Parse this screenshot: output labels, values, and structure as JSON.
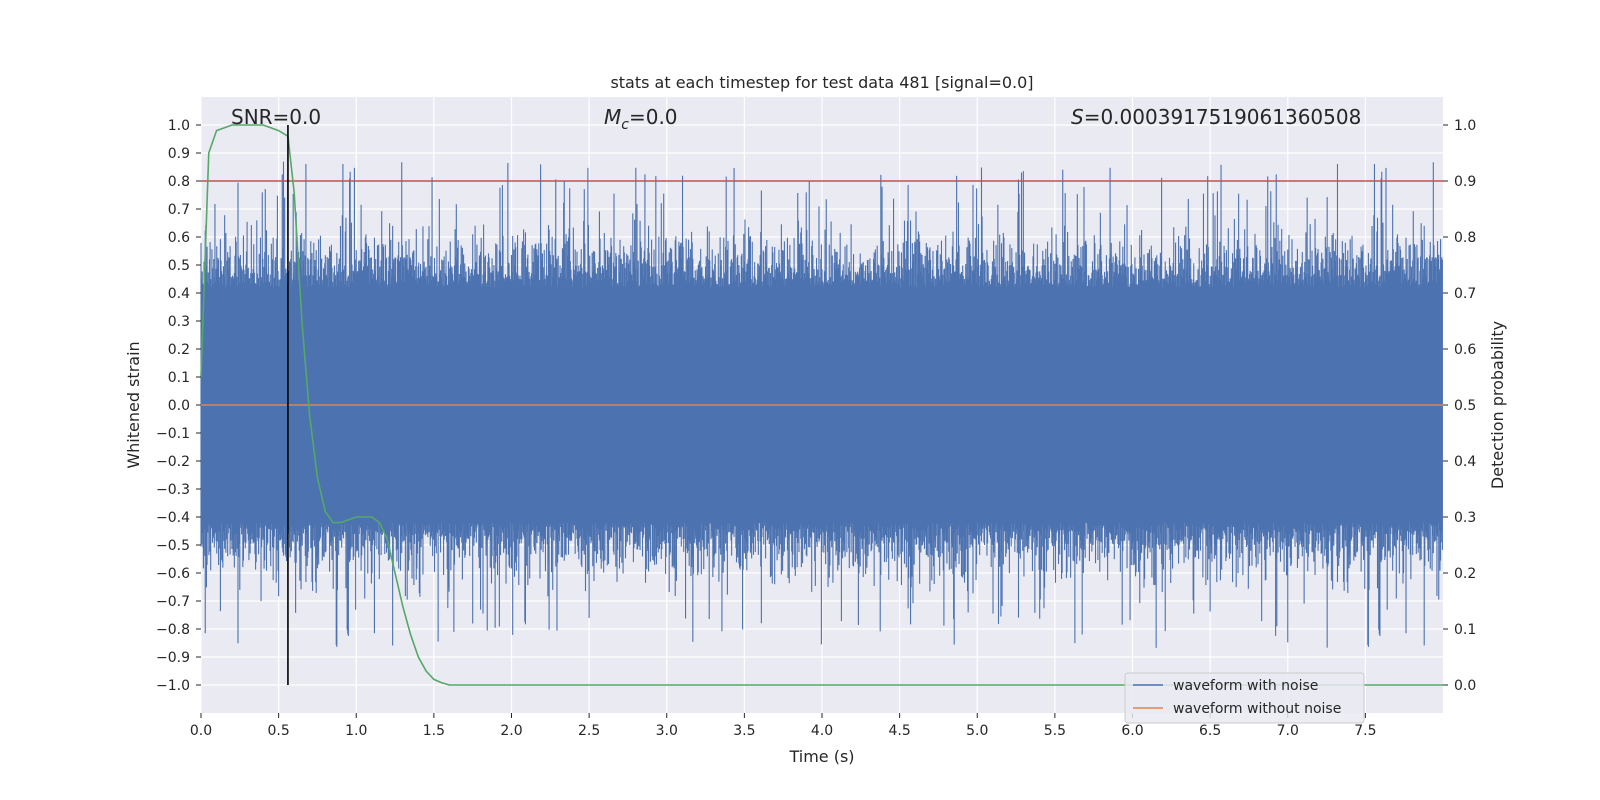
{
  "chart_data": {
    "type": "line",
    "title": "stats at each timestep for test data 481 [signal=0.0]",
    "xlabel": "Time (s)",
    "ylabel": "Whitened strain",
    "y2label": "Detection probability",
    "xlim": [
      0.0,
      8.0
    ],
    "ylim": [
      -1.1,
      1.1
    ],
    "y2lim": [
      -0.05,
      1.05
    ],
    "x_ticks": [
      0.0,
      0.5,
      1.0,
      1.5,
      2.0,
      2.5,
      3.0,
      3.5,
      4.0,
      4.5,
      5.0,
      5.5,
      6.0,
      6.5,
      7.0,
      7.5
    ],
    "x_tick_labels": [
      "0.0",
      "0.5",
      "1.0",
      "1.5",
      "2.0",
      "2.5",
      "3.0",
      "3.5",
      "4.0",
      "4.5",
      "5.0",
      "5.5",
      "6.0",
      "6.5",
      "7.0",
      "7.5"
    ],
    "y_ticks": [
      1.0,
      0.9,
      0.8,
      0.7,
      0.6,
      0.5,
      0.4,
      0.3,
      0.2,
      0.1,
      0.0,
      -0.1,
      -0.2,
      -0.3,
      -0.4,
      -0.5,
      -0.6,
      -0.7,
      -0.8,
      -0.9,
      -1.0
    ],
    "y_tick_labels": [
      "1.0",
      "0.9",
      "0.8",
      "0.7",
      "0.6",
      "0.5",
      "0.4",
      "0.3",
      "0.2",
      "0.1",
      "0.0",
      "−0.1",
      "−0.2",
      "−0.3",
      "−0.4",
      "−0.5",
      "−0.6",
      "−0.7",
      "−0.8",
      "−0.9",
      "−1.0"
    ],
    "y2_ticks": [
      1.0,
      0.9,
      0.8,
      0.7,
      0.6,
      0.5,
      0.4,
      0.3,
      0.2,
      0.1,
      0.0
    ],
    "y2_tick_labels": [
      "1.0",
      "0.9",
      "0.8",
      "0.7",
      "0.6",
      "0.5",
      "0.4",
      "0.3",
      "0.2",
      "0.1",
      "0.0"
    ],
    "grid": true,
    "annotations": {
      "snr": "SNR=0.0",
      "mc_symbol": "M",
      "mc_sub": "c",
      "mc_value": "=0.0",
      "s_symbol": "S",
      "s_value": "=0.0003917519061360508"
    },
    "threshold": {
      "axis": "y2",
      "value": 0.9,
      "color": "#c44e52"
    },
    "marker_line": {
      "x": 0.56,
      "y_from": -1.0,
      "y_to": 1.0,
      "color": "#000000"
    },
    "series": [
      {
        "name": "waveform with noise",
        "color": "#4c72b0",
        "axis": "y1",
        "duration": 8.0,
        "samples": 2048,
        "noise_envelope": 0.42,
        "peak_max": 0.98,
        "peak_min": -1.0
      },
      {
        "name": "waveform without noise",
        "color": "#dd8452",
        "axis": "y1",
        "x": [
          0.0,
          8.0
        ],
        "y": [
          0.0,
          0.0
        ]
      },
      {
        "name": "Detection probability",
        "color": "#55a868",
        "axis": "y2",
        "x": [
          0.0,
          0.05,
          0.1,
          0.2,
          0.3,
          0.4,
          0.5,
          0.56,
          0.6,
          0.65,
          0.7,
          0.75,
          0.8,
          0.85,
          0.9,
          1.0,
          1.05,
          1.1,
          1.15,
          1.2,
          1.25,
          1.3,
          1.35,
          1.4,
          1.45,
          1.5,
          1.55,
          1.6,
          1.65,
          1.7,
          2.0,
          8.0
        ],
        "y": [
          0.55,
          0.95,
          0.99,
          1.0,
          1.0,
          1.0,
          0.99,
          0.98,
          0.88,
          0.65,
          0.48,
          0.37,
          0.31,
          0.29,
          0.29,
          0.3,
          0.3,
          0.3,
          0.29,
          0.26,
          0.2,
          0.14,
          0.09,
          0.05,
          0.025,
          0.01,
          0.004,
          0.0,
          0.0,
          0.0,
          0.0,
          0.0
        ]
      }
    ],
    "legend": {
      "placement": "lower-right",
      "entries": [
        "waveform with noise",
        "waveform without noise"
      ]
    }
  }
}
